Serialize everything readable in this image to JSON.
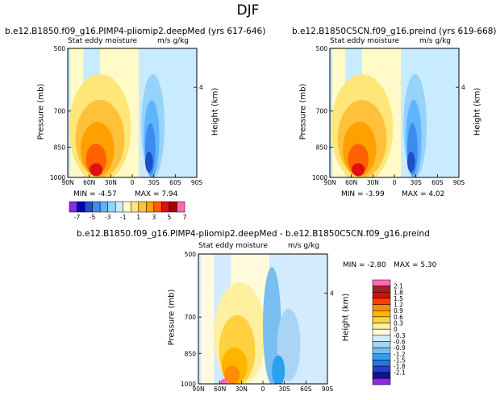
{
  "season_label": "DJF",
  "colors": {
    "levels_7": [
      "#8a2be2",
      "#0000b4",
      "#2050c8",
      "#3c8cf0",
      "#5fb4ff",
      "#96d2fa",
      "#c8ebff",
      "#fffac8",
      "#ffe678",
      "#ffc03c",
      "#ffa000",
      "#ff6000",
      "#e01010",
      "#a00000",
      "#ff69b4"
    ],
    "levels_diff": [
      "#8a2be2",
      "#1010a0",
      "#2040c8",
      "#3070e0",
      "#2ca0f0",
      "#78bef0",
      "#aad4f5",
      "#d2ebff",
      "#fffadc",
      "#fff0a0",
      "#ffd040",
      "#ffb400",
      "#ff8c00",
      "#ff4000",
      "#d21010",
      "#a02020",
      "#ff69b4"
    ]
  },
  "chart_data": [
    {
      "type": "heatmap",
      "title": "b.e12.B1850.f09_g16.PIMP4-pliomip2.deepMed (yrs 617-646)",
      "subtitle_left": "Stat eddy moisture",
      "subtitle_right": "m/s g/kg",
      "ylabel": "Pressure (mb)",
      "ylabel_right": "Height (km)",
      "x_ticks": [
        "90N",
        "60N",
        "30N",
        "0",
        "30S",
        "60S",
        "90S"
      ],
      "y_ticks": [
        "500",
        "700",
        "850",
        "1000"
      ],
      "right_ticks": [
        "4"
      ],
      "min_label": "MIN = -4.57",
      "max_label": "MAX = 7.94"
    },
    {
      "type": "heatmap",
      "title": "b.e12.B1850C5CN.f09_g16.preind (yrs 619-668)",
      "subtitle_left": "Stat eddy moisture",
      "subtitle_right": "m/s g/kg",
      "ylabel": "Pressure (mb)",
      "ylabel_right": "Height (km)",
      "x_ticks": [
        "90N",
        "60N",
        "30N",
        "0",
        "30S",
        "60S",
        "90S"
      ],
      "y_ticks": [
        "500",
        "700",
        "850",
        "1000"
      ],
      "right_ticks": [
        "4"
      ],
      "min_label": "MIN = -3.99",
      "max_label": "MAX = 4.02"
    },
    {
      "type": "heatmap",
      "title": "b.e12.B1850.f09_g16.PIMP4-pliomip2.deepMed - b.e12.B1850C5CN.f09_g16.preind",
      "subtitle_left": "Stat eddy moisture",
      "subtitle_right": "m/s g/kg",
      "ylabel": "Pressure (mb)",
      "ylabel_right": "Height (km)",
      "x_ticks": [
        "90N",
        "60N",
        "30N",
        "0",
        "30S",
        "60S",
        "90S"
      ],
      "y_ticks": [
        "500",
        "700",
        "850",
        "1000"
      ],
      "right_ticks": [
        "4"
      ],
      "min_label": "MIN = -2.80",
      "max_label": "MAX = 5.30"
    }
  ],
  "colorbar_top": {
    "labels": [
      "-7",
      "-5",
      "-3",
      "-1",
      "1",
      "3",
      "5",
      "7"
    ]
  },
  "colorbar_diff": {
    "labels": [
      "2.1",
      "1.8",
      "1.5",
      "1.2",
      "0.9",
      "0.6",
      "0.3",
      "0",
      "-0.3",
      "-0.6",
      "-0.9",
      "-1.2",
      "-1.5",
      "-1.8",
      "-2.1"
    ]
  }
}
